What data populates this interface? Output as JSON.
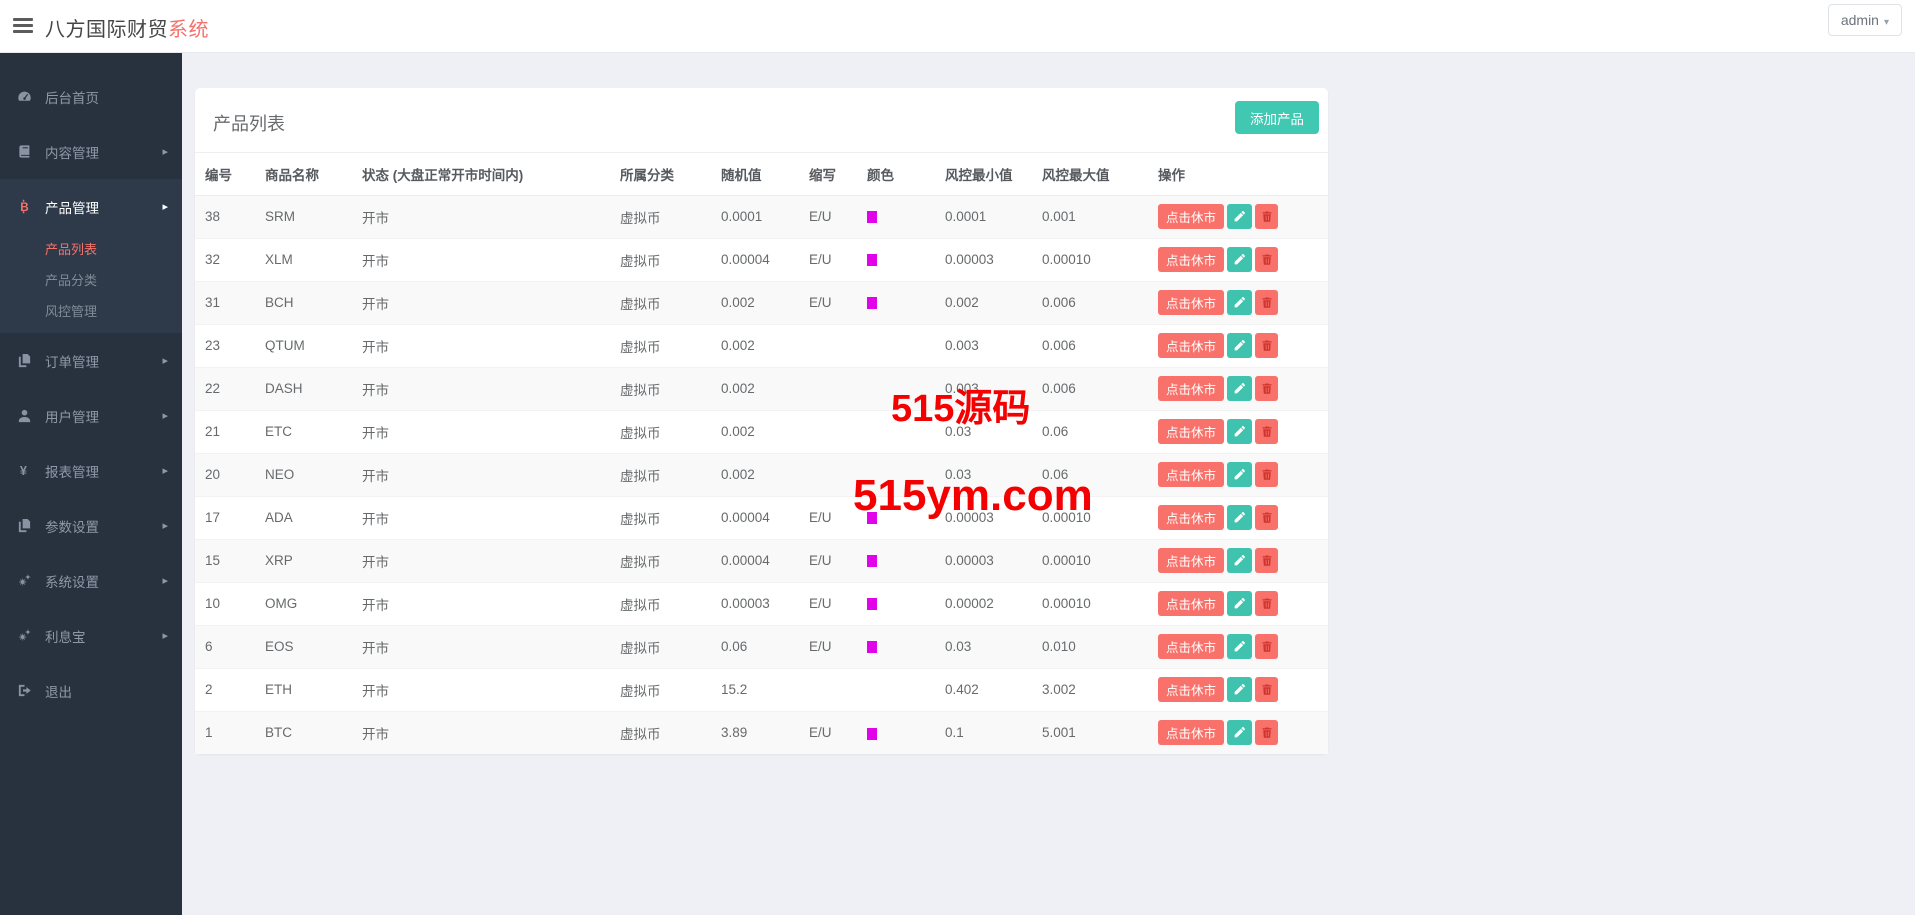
{
  "topbar": {
    "brand_primary": "八方国际财贸",
    "brand_accent": "系统",
    "user_menu": "admin"
  },
  "sidebar": {
    "items": [
      {
        "label": "后台首页",
        "icon": "dashboard-icon",
        "chevron": false
      },
      {
        "label": "内容管理",
        "icon": "book-icon",
        "chevron": true
      },
      {
        "label": "产品管理",
        "icon": "bitcoin-icon",
        "chevron": true,
        "expanded": true,
        "children": [
          {
            "label": "产品列表",
            "active": true
          },
          {
            "label": "产品分类",
            "active": false
          },
          {
            "label": "风控管理",
            "active": false
          }
        ]
      },
      {
        "label": "订单管理",
        "icon": "files-icon",
        "chevron": true
      },
      {
        "label": "用户管理",
        "icon": "user-icon",
        "chevron": true
      },
      {
        "label": "报表管理",
        "icon": "yen-icon",
        "chevron": true
      },
      {
        "label": "参数设置",
        "icon": "files-icon",
        "chevron": true
      },
      {
        "label": "系统设置",
        "icon": "gears-icon",
        "chevron": true
      },
      {
        "label": "利息宝",
        "icon": "gears-icon",
        "chevron": true
      },
      {
        "label": "退出",
        "icon": "signout-icon",
        "chevron": false
      }
    ]
  },
  "panel": {
    "title": "产品列表",
    "add_button": "添加产品"
  },
  "table": {
    "headers": [
      "编号",
      "商品名称",
      "状态 (大盘正常开市时间内)",
      "所属分类",
      "随机值",
      "缩写",
      "颜色",
      "风控最小值",
      "风控最大值",
      "操作"
    ],
    "action_rest_label": "点击休市",
    "rows": [
      {
        "id": "38",
        "name": "SRM",
        "status": "开市",
        "category": "虚拟币",
        "random": "0.0001",
        "abbr": "E/U",
        "swatch": true,
        "min": "0.0001",
        "max": "0.001"
      },
      {
        "id": "32",
        "name": "XLM",
        "status": "开市",
        "category": "虚拟币",
        "random": "0.00004",
        "abbr": "E/U",
        "swatch": true,
        "min": "0.00003",
        "max": "0.00010"
      },
      {
        "id": "31",
        "name": "BCH",
        "status": "开市",
        "category": "虚拟币",
        "random": "0.002",
        "abbr": "E/U",
        "swatch": true,
        "min": "0.002",
        "max": "0.006"
      },
      {
        "id": "23",
        "name": "QTUM",
        "status": "开市",
        "category": "虚拟币",
        "random": "0.002",
        "abbr": "",
        "swatch": false,
        "min": "0.003",
        "max": "0.006"
      },
      {
        "id": "22",
        "name": "DASH",
        "status": "开市",
        "category": "虚拟币",
        "random": "0.002",
        "abbr": "",
        "swatch": false,
        "min": "0.003",
        "max": "0.006"
      },
      {
        "id": "21",
        "name": "ETC",
        "status": "开市",
        "category": "虚拟币",
        "random": "0.002",
        "abbr": "",
        "swatch": false,
        "min": "0.03",
        "max": "0.06"
      },
      {
        "id": "20",
        "name": "NEO",
        "status": "开市",
        "category": "虚拟币",
        "random": "0.002",
        "abbr": "",
        "swatch": false,
        "min": "0.03",
        "max": "0.06"
      },
      {
        "id": "17",
        "name": "ADA",
        "status": "开市",
        "category": "虚拟币",
        "random": "0.00004",
        "abbr": "E/U",
        "swatch": true,
        "min": "0.00003",
        "max": "0.00010"
      },
      {
        "id": "15",
        "name": "XRP",
        "status": "开市",
        "category": "虚拟币",
        "random": "0.00004",
        "abbr": "E/U",
        "swatch": true,
        "min": "0.00003",
        "max": "0.00010"
      },
      {
        "id": "10",
        "name": "OMG",
        "status": "开市",
        "category": "虚拟币",
        "random": "0.00003",
        "abbr": "E/U",
        "swatch": true,
        "min": "0.00002",
        "max": "0.00010"
      },
      {
        "id": "6",
        "name": "EOS",
        "status": "开市",
        "category": "虚拟币",
        "random": "0.06",
        "abbr": "E/U",
        "swatch": true,
        "min": "0.03",
        "max": "0.010"
      },
      {
        "id": "2",
        "name": "ETH",
        "status": "开市",
        "category": "虚拟币",
        "random": "15.2",
        "abbr": "",
        "swatch": false,
        "min": "0.402",
        "max": "3.002"
      },
      {
        "id": "1",
        "name": "BTC",
        "status": "开市",
        "category": "虚拟币",
        "random": "3.89",
        "abbr": "E/U",
        "swatch": true,
        "min": "0.1",
        "max": "5.001"
      }
    ]
  },
  "watermark": {
    "line1": "515源码",
    "line2": "515ym.com"
  },
  "colors": {
    "accent_salmon": "#f8726b",
    "accent_teal": "#41c8b3",
    "swatch_magenta": "#e103e9",
    "watermark_red": "#f40000",
    "sidebar_bg": "#28323f",
    "sidebar_expanded_bg": "#2e3a49"
  }
}
